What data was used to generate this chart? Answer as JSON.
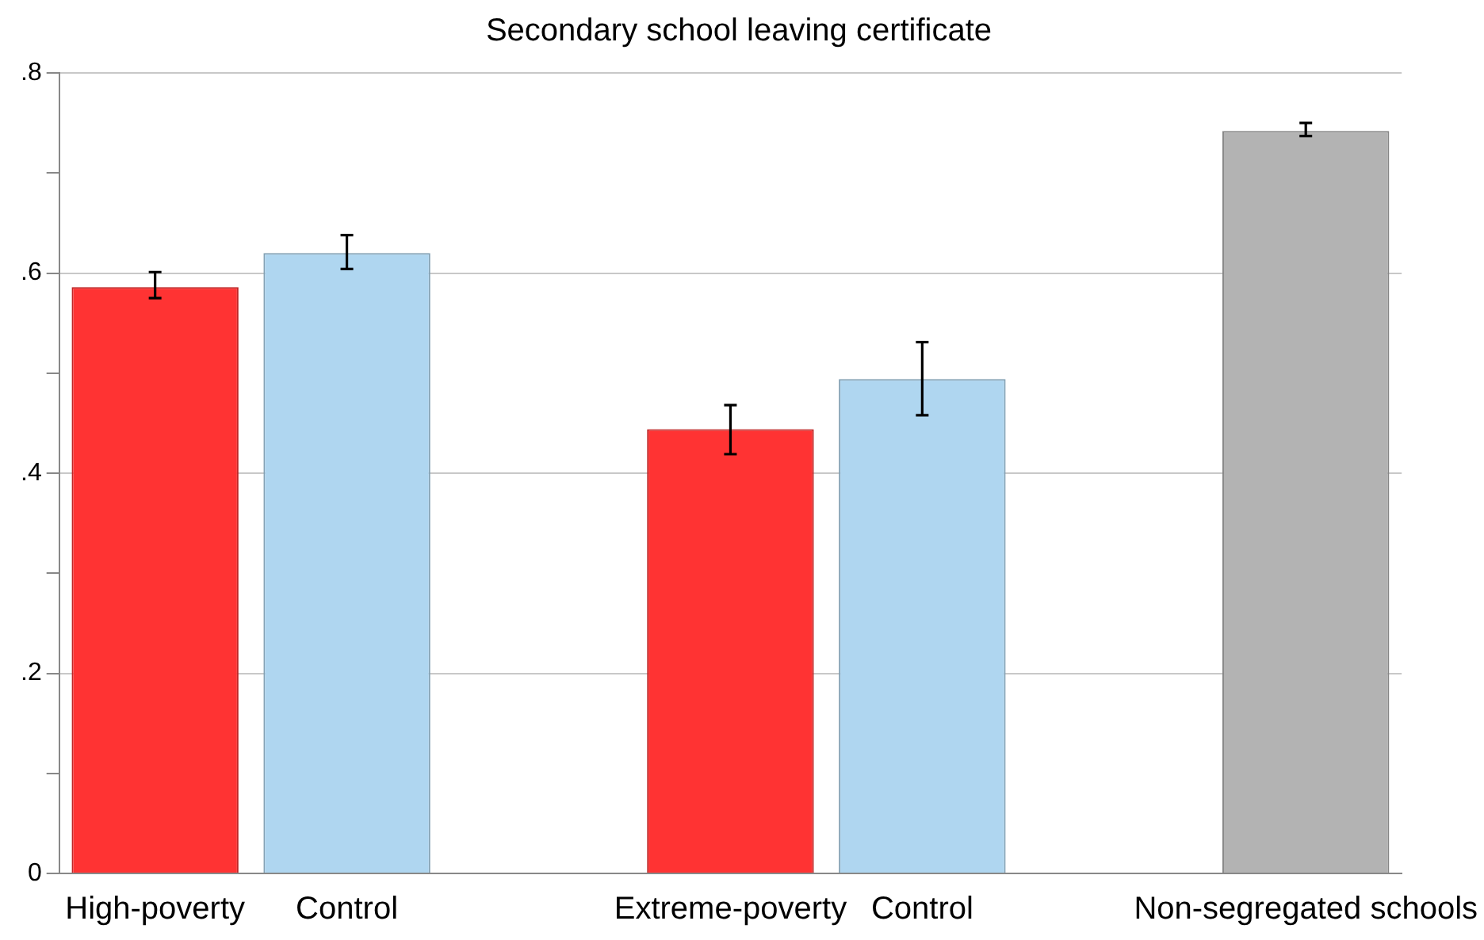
{
  "chart_data": {
    "type": "bar",
    "title": "Secondary school leaving certificate",
    "categories": [
      "High-poverty",
      "Control",
      null,
      "Extreme-poverty",
      "Control",
      null,
      "Non-segregated schools"
    ],
    "values": [
      0.586,
      0.62,
      null,
      0.444,
      0.494,
      null,
      0.742
    ],
    "colors": [
      "#ff3333",
      "#afd6f0",
      null,
      "#ff3333",
      "#afd6f0",
      null,
      "#b3b3b3"
    ],
    "errors": [
      [
        0.575,
        0.601
      ],
      [
        0.604,
        0.638
      ],
      null,
      [
        0.419,
        0.468
      ],
      [
        0.458,
        0.531
      ],
      null,
      [
        0.737,
        0.75
      ]
    ],
    "ylim": [
      0,
      0.8
    ],
    "yticks": [
      {
        "value": 0,
        "label": "0"
      },
      {
        "value": 0.1,
        "label": null
      },
      {
        "value": 0.2,
        "label": ".2"
      },
      {
        "value": 0.3,
        "label": null
      },
      {
        "value": 0.4,
        "label": ".4"
      },
      {
        "value": 0.5,
        "label": null
      },
      {
        "value": 0.6,
        "label": ".6"
      },
      {
        "value": 0.7,
        "label": null
      },
      {
        "value": 0.8,
        "label": ".8"
      }
    ],
    "grid": "y"
  }
}
